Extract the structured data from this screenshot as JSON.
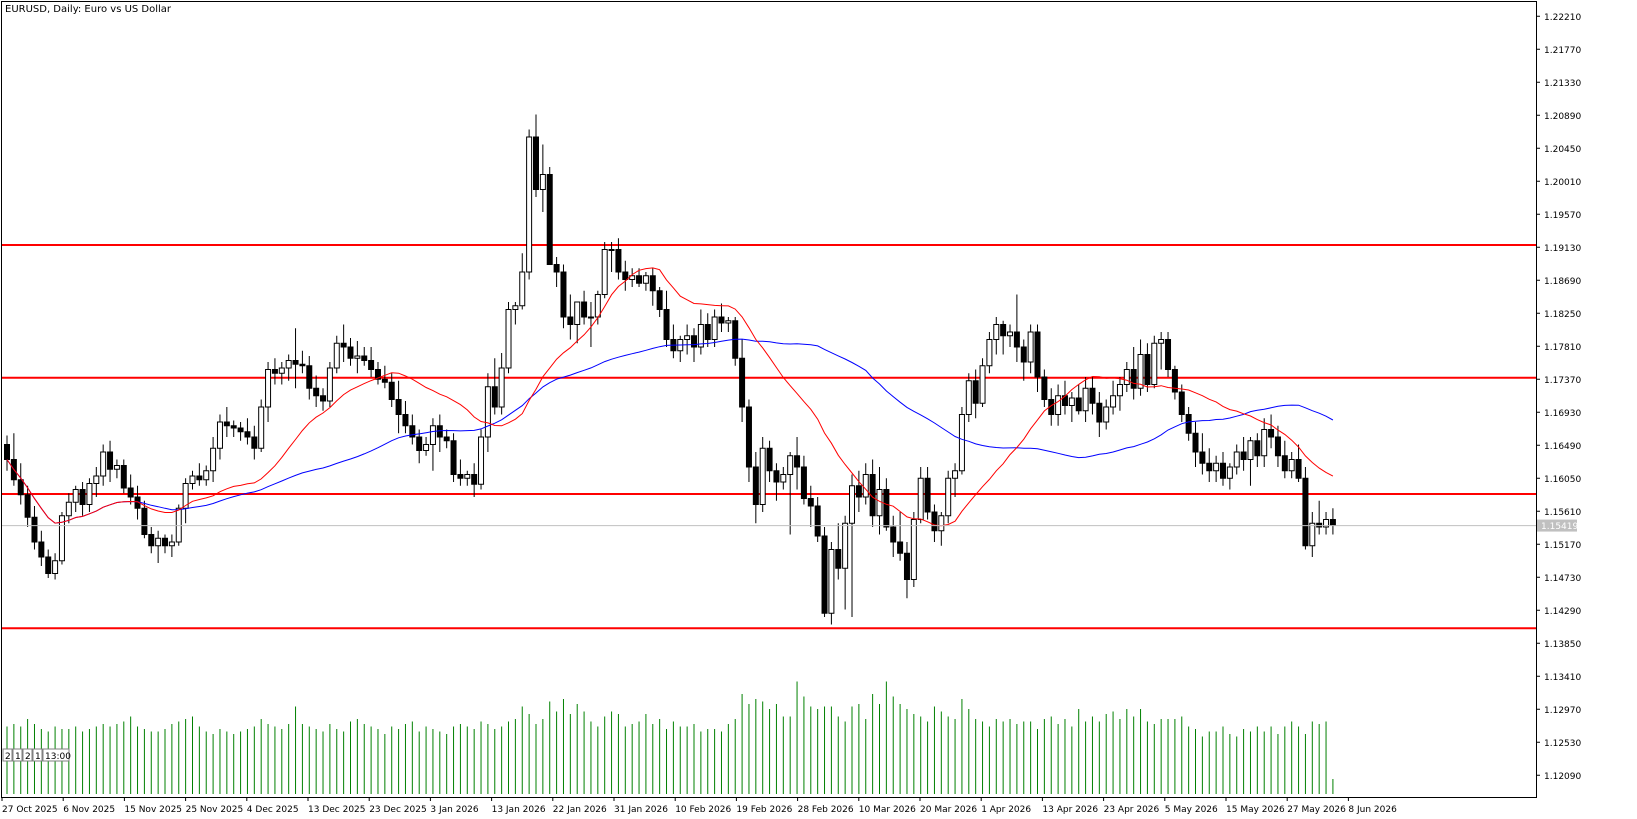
{
  "header": {
    "title": "EURUSD, Daily:  Euro vs US Dollar"
  },
  "timeframe_badge": [
    "2",
    "1",
    "2",
    "1",
    "13:00"
  ],
  "current_price_label": "1.15419",
  "colors": {
    "bull_candle": "#ffffff",
    "bear_candle": "#000000",
    "ma_fast": "#ff0000",
    "ma_slow": "#0000ff",
    "hline": "#ff0000",
    "volume": "#008000",
    "price_badge": "#c0c0c0"
  },
  "chart_data": {
    "type": "candlestick",
    "title": "EURUSD, Daily:  Euro vs US Dollar",
    "y_ticks": [
      "1.22210",
      "1.21770",
      "1.21330",
      "1.20890",
      "1.20450",
      "1.20010",
      "1.19570",
      "1.19130",
      "1.18690",
      "1.18250",
      "1.17810",
      "1.17370",
      "1.16930",
      "1.16490",
      "1.16050",
      "1.15610",
      "1.15170",
      "1.14730",
      "1.14290",
      "1.13850",
      "1.13410",
      "1.12970",
      "1.12530",
      "1.12090"
    ],
    "ylim": [
      1.118,
      1.224
    ],
    "x_labels": [
      "27 Oct 2025",
      "6 Nov 2025",
      "15 Nov 2025",
      "25 Nov 2025",
      "4 Dec 2025",
      "13 Dec 2025",
      "23 Dec 2025",
      "3 Jan 2026",
      "13 Jan 2026",
      "22 Jan 2026",
      "31 Jan 2026",
      "10 Feb 2026",
      "19 Feb 2026",
      "28 Feb 2026",
      "10 Mar 2026",
      "20 Mar 2026",
      "1 Apr 2026",
      "13 Apr 2026",
      "23 Apr 2026",
      "5 May 2026",
      "15 May 2026",
      "27 May 2026",
      "8 Jun 2026"
    ],
    "horizontal_lines": [
      1.1916,
      1.1739,
      1.1584,
      1.1405
    ],
    "current_price": 1.15419,
    "ohlc": [
      [
        1.165,
        1.1662,
        1.1615,
        1.163
      ],
      [
        1.163,
        1.1665,
        1.1595,
        1.1603
      ],
      [
        1.1603,
        1.1625,
        1.157,
        1.1583
      ],
      [
        1.1583,
        1.1595,
        1.154,
        1.1553
      ],
      [
        1.1553,
        1.1568,
        1.151,
        1.152
      ],
      [
        1.152,
        1.1535,
        1.1488,
        1.15
      ],
      [
        1.15,
        1.151,
        1.1472,
        1.1478
      ],
      [
        1.1478,
        1.1505,
        1.147,
        1.1495
      ],
      [
        1.1495,
        1.156,
        1.149,
        1.1555
      ],
      [
        1.1555,
        1.1585,
        1.1545,
        1.1573
      ],
      [
        1.1573,
        1.1595,
        1.156,
        1.159
      ],
      [
        1.159,
        1.16,
        1.1555,
        1.157
      ],
      [
        1.157,
        1.1605,
        1.156,
        1.1598
      ],
      [
        1.1598,
        1.162,
        1.158,
        1.1608
      ],
      [
        1.1608,
        1.165,
        1.1595,
        1.164
      ],
      [
        1.164,
        1.1655,
        1.16,
        1.1617
      ],
      [
        1.1617,
        1.163,
        1.1605,
        1.1622
      ],
      [
        1.1622,
        1.163,
        1.1585,
        1.1592
      ],
      [
        1.1592,
        1.161,
        1.157,
        1.158
      ],
      [
        1.158,
        1.1595,
        1.155,
        1.1565
      ],
      [
        1.1565,
        1.1575,
        1.1525,
        1.153
      ],
      [
        1.153,
        1.154,
        1.1505,
        1.1515
      ],
      [
        1.1515,
        1.1535,
        1.1492,
        1.1525
      ],
      [
        1.1525,
        1.153,
        1.1505,
        1.1515
      ],
      [
        1.1515,
        1.153,
        1.15,
        1.152
      ],
      [
        1.152,
        1.157,
        1.1515,
        1.1565
      ],
      [
        1.1565,
        1.1605,
        1.1545,
        1.1598
      ],
      [
        1.1598,
        1.1615,
        1.159,
        1.1608
      ],
      [
        1.1608,
        1.1625,
        1.1595,
        1.1603
      ],
      [
        1.1603,
        1.1622,
        1.1595,
        1.1615
      ],
      [
        1.1615,
        1.166,
        1.16,
        1.1645
      ],
      [
        1.1645,
        1.169,
        1.163,
        1.168
      ],
      [
        1.168,
        1.17,
        1.166,
        1.1675
      ],
      [
        1.1675,
        1.1682,
        1.166,
        1.1672
      ],
      [
        1.1672,
        1.168,
        1.1655,
        1.1667
      ],
      [
        1.1667,
        1.1685,
        1.165,
        1.166
      ],
      [
        1.166,
        1.1675,
        1.163,
        1.1645
      ],
      [
        1.1645,
        1.171,
        1.164,
        1.17
      ],
      [
        1.17,
        1.176,
        1.168,
        1.175
      ],
      [
        1.175,
        1.1765,
        1.173,
        1.1745
      ],
      [
        1.1745,
        1.176,
        1.173,
        1.1752
      ],
      [
        1.1752,
        1.177,
        1.1735,
        1.1762
      ],
      [
        1.1762,
        1.1805,
        1.1725,
        1.1757
      ],
      [
        1.1757,
        1.1775,
        1.1745,
        1.1755
      ],
      [
        1.1755,
        1.1768,
        1.171,
        1.1725
      ],
      [
        1.1725,
        1.1742,
        1.17,
        1.1715
      ],
      [
        1.1715,
        1.1725,
        1.1695,
        1.1708
      ],
      [
        1.1708,
        1.176,
        1.17,
        1.1752
      ],
      [
        1.1752,
        1.1795,
        1.1745,
        1.1785
      ],
      [
        1.1785,
        1.181,
        1.176,
        1.178
      ],
      [
        1.178,
        1.1792,
        1.1755,
        1.1765
      ],
      [
        1.1765,
        1.1788,
        1.1745,
        1.1768
      ],
      [
        1.1768,
        1.178,
        1.1755,
        1.1762
      ],
      [
        1.1762,
        1.178,
        1.174,
        1.175
      ],
      [
        1.175,
        1.176,
        1.173,
        1.1737
      ],
      [
        1.1737,
        1.1755,
        1.1725,
        1.1733
      ],
      [
        1.1733,
        1.1745,
        1.17,
        1.171
      ],
      [
        1.171,
        1.1735,
        1.1665,
        1.169
      ],
      [
        1.169,
        1.1708,
        1.1665,
        1.1675
      ],
      [
        1.1675,
        1.169,
        1.165,
        1.166
      ],
      [
        1.166,
        1.167,
        1.1625,
        1.1642
      ],
      [
        1.1642,
        1.166,
        1.1635,
        1.165
      ],
      [
        1.165,
        1.1685,
        1.1615,
        1.1675
      ],
      [
        1.1675,
        1.169,
        1.164,
        1.166
      ],
      [
        1.166,
        1.167,
        1.1645,
        1.1655
      ],
      [
        1.1655,
        1.1665,
        1.16,
        1.161
      ],
      [
        1.161,
        1.163,
        1.1595,
        1.1605
      ],
      [
        1.1605,
        1.1615,
        1.1595,
        1.161
      ],
      [
        1.161,
        1.1625,
        1.158,
        1.1597
      ],
      [
        1.1597,
        1.167,
        1.159,
        1.166
      ],
      [
        1.166,
        1.1745,
        1.164,
        1.1727
      ],
      [
        1.1727,
        1.1765,
        1.169,
        1.17
      ],
      [
        1.17,
        1.1772,
        1.169,
        1.1752
      ],
      [
        1.1752,
        1.184,
        1.1745,
        1.183
      ],
      [
        1.183,
        1.184,
        1.181,
        1.1835
      ],
      [
        1.1835,
        1.1905,
        1.183,
        1.188
      ],
      [
        1.188,
        1.207,
        1.187,
        1.206
      ],
      [
        1.206,
        1.209,
        1.198,
        1.199
      ],
      [
        1.199,
        1.205,
        1.196,
        1.201
      ],
      [
        1.201,
        1.202,
        1.189,
        1.189
      ],
      [
        1.189,
        1.19,
        1.186,
        1.188
      ],
      [
        1.188,
        1.189,
        1.1805,
        1.182
      ],
      [
        1.182,
        1.185,
        1.179,
        1.181
      ],
      [
        1.181,
        1.1835,
        1.1785,
        1.184
      ],
      [
        1.184,
        1.1855,
        1.181,
        1.182
      ],
      [
        1.182,
        1.184,
        1.178,
        1.182
      ],
      [
        1.182,
        1.1855,
        1.181,
        1.185
      ],
      [
        1.185,
        1.192,
        1.1845,
        1.191
      ],
      [
        1.191,
        1.192,
        1.188,
        1.191
      ],
      [
        1.191,
        1.1925,
        1.187,
        1.188
      ],
      [
        1.188,
        1.1895,
        1.1855,
        1.187
      ],
      [
        1.187,
        1.1885,
        1.186,
        1.1875
      ],
      [
        1.1875,
        1.1885,
        1.186,
        1.1865
      ],
      [
        1.1865,
        1.188,
        1.1855,
        1.1875
      ],
      [
        1.1875,
        1.1885,
        1.1835,
        1.1855
      ],
      [
        1.1855,
        1.186,
        1.182,
        1.183
      ],
      [
        1.183,
        1.1855,
        1.178,
        1.179
      ],
      [
        1.179,
        1.181,
        1.1765,
        1.1775
      ],
      [
        1.1775,
        1.1795,
        1.176,
        1.179
      ],
      [
        1.179,
        1.181,
        1.177,
        1.1795
      ],
      [
        1.1795,
        1.1805,
        1.176,
        1.178
      ],
      [
        1.178,
        1.183,
        1.177,
        1.181
      ],
      [
        1.181,
        1.1825,
        1.178,
        1.179
      ],
      [
        1.179,
        1.183,
        1.178,
        1.182
      ],
      [
        1.182,
        1.1838,
        1.18,
        1.1812
      ],
      [
        1.1812,
        1.182,
        1.18,
        1.1815
      ],
      [
        1.1815,
        1.182,
        1.1755,
        1.1765
      ],
      [
        1.1765,
        1.179,
        1.168,
        1.17
      ],
      [
        1.17,
        1.171,
        1.16,
        1.162
      ],
      [
        1.162,
        1.164,
        1.1545,
        1.157
      ],
      [
        1.157,
        1.166,
        1.156,
        1.1645
      ],
      [
        1.1645,
        1.1655,
        1.16,
        1.1615
      ],
      [
        1.1615,
        1.1625,
        1.1575,
        1.16
      ],
      [
        1.16,
        1.162,
        1.159,
        1.161
      ],
      [
        1.161,
        1.164,
        1.153,
        1.1635
      ],
      [
        1.1635,
        1.166,
        1.159,
        1.162
      ],
      [
        1.162,
        1.1635,
        1.157,
        1.1578
      ],
      [
        1.1578,
        1.1595,
        1.154,
        1.1568
      ],
      [
        1.1568,
        1.158,
        1.152,
        1.1528
      ],
      [
        1.1528,
        1.154,
        1.142,
        1.1425
      ],
      [
        1.1425,
        1.152,
        1.141,
        1.151
      ],
      [
        1.151,
        1.1545,
        1.147,
        1.1485
      ],
      [
        1.1485,
        1.1555,
        1.143,
        1.1545
      ],
      [
        1.1545,
        1.161,
        1.142,
        1.1595
      ],
      [
        1.1595,
        1.1615,
        1.156,
        1.158
      ],
      [
        1.158,
        1.1625,
        1.157,
        1.161
      ],
      [
        1.161,
        1.163,
        1.154,
        1.1555
      ],
      [
        1.1555,
        1.162,
        1.153,
        1.159
      ],
      [
        1.159,
        1.1605,
        1.1535,
        1.154
      ],
      [
        1.154,
        1.1555,
        1.15,
        1.152
      ],
      [
        1.152,
        1.156,
        1.1495,
        1.1505
      ],
      [
        1.1505,
        1.152,
        1.1445,
        1.147
      ],
      [
        1.147,
        1.156,
        1.146,
        1.155
      ],
      [
        1.155,
        1.162,
        1.1545,
        1.1605
      ],
      [
        1.1605,
        1.162,
        1.155,
        1.156
      ],
      [
        1.156,
        1.157,
        1.152,
        1.1535
      ],
      [
        1.1535,
        1.156,
        1.1515,
        1.1555
      ],
      [
        1.1555,
        1.1615,
        1.1545,
        1.1605
      ],
      [
        1.1605,
        1.1625,
        1.158,
        1.1615
      ],
      [
        1.1615,
        1.17,
        1.161,
        1.169
      ],
      [
        1.169,
        1.1745,
        1.168,
        1.1735
      ],
      [
        1.1735,
        1.175,
        1.1685,
        1.1705
      ],
      [
        1.1705,
        1.1765,
        1.17,
        1.1755
      ],
      [
        1.1755,
        1.18,
        1.1745,
        1.179
      ],
      [
        1.179,
        1.182,
        1.177,
        1.181
      ],
      [
        1.181,
        1.1815,
        1.177,
        1.1795
      ],
      [
        1.1795,
        1.181,
        1.178,
        1.18
      ],
      [
        1.18,
        1.185,
        1.176,
        1.178
      ],
      [
        1.178,
        1.179,
        1.1735,
        1.176
      ],
      [
        1.176,
        1.181,
        1.1745,
        1.18
      ],
      [
        1.18,
        1.181,
        1.172,
        1.174
      ],
      [
        1.174,
        1.175,
        1.17,
        1.171
      ],
      [
        1.171,
        1.1725,
        1.1675,
        1.169
      ],
      [
        1.169,
        1.173,
        1.1675,
        1.1715
      ],
      [
        1.1715,
        1.1735,
        1.169,
        1.1702
      ],
      [
        1.1702,
        1.172,
        1.168,
        1.1712
      ],
      [
        1.1712,
        1.173,
        1.169,
        1.1695
      ],
      [
        1.1695,
        1.174,
        1.168,
        1.1725
      ],
      [
        1.1725,
        1.174,
        1.169,
        1.1705
      ],
      [
        1.1705,
        1.172,
        1.166,
        1.168
      ],
      [
        1.168,
        1.171,
        1.167,
        1.17
      ],
      [
        1.17,
        1.1735,
        1.169,
        1.1715
      ],
      [
        1.1715,
        1.174,
        1.1695,
        1.173
      ],
      [
        1.173,
        1.176,
        1.172,
        1.175
      ],
      [
        1.175,
        1.178,
        1.171,
        1.1725
      ],
      [
        1.1725,
        1.179,
        1.1715,
        1.177
      ],
      [
        1.177,
        1.1785,
        1.172,
        1.173
      ],
      [
        1.173,
        1.1795,
        1.1725,
        1.1785
      ],
      [
        1.1785,
        1.18,
        1.175,
        1.179
      ],
      [
        1.179,
        1.18,
        1.174,
        1.175
      ],
      [
        1.175,
        1.1755,
        1.171,
        1.172
      ],
      [
        1.172,
        1.173,
        1.168,
        1.169
      ],
      [
        1.169,
        1.17,
        1.1655,
        1.1665
      ],
      [
        1.1665,
        1.168,
        1.162,
        1.164
      ],
      [
        1.164,
        1.1665,
        1.161,
        1.1625
      ],
      [
        1.1625,
        1.1645,
        1.16,
        1.1615
      ],
      [
        1.1615,
        1.1635,
        1.16,
        1.1625
      ],
      [
        1.1625,
        1.164,
        1.1595,
        1.1605
      ],
      [
        1.1605,
        1.1625,
        1.159,
        1.162
      ],
      [
        1.162,
        1.165,
        1.161,
        1.164
      ],
      [
        1.164,
        1.166,
        1.1615,
        1.163
      ],
      [
        1.163,
        1.166,
        1.1595,
        1.1655
      ],
      [
        1.1655,
        1.1665,
        1.162,
        1.1635
      ],
      [
        1.1635,
        1.1685,
        1.162,
        1.167
      ],
      [
        1.167,
        1.169,
        1.1645,
        1.166
      ],
      [
        1.166,
        1.1675,
        1.162,
        1.1635
      ],
      [
        1.1635,
        1.1655,
        1.1605,
        1.1615
      ],
      [
        1.1615,
        1.164,
        1.1605,
        1.163
      ],
      [
        1.163,
        1.165,
        1.16,
        1.1605
      ],
      [
        1.1605,
        1.162,
        1.151,
        1.1515
      ],
      [
        1.1515,
        1.156,
        1.15,
        1.1545
      ],
      [
        1.1545,
        1.1575,
        1.153,
        1.154
      ],
      [
        1.154,
        1.156,
        1.153,
        1.155
      ],
      [
        1.155,
        1.1565,
        1.153,
        1.1542
      ]
    ],
    "volume": [
      27,
      28,
      27,
      30,
      28,
      26,
      25,
      27,
      26,
      26,
      27,
      25,
      26,
      27,
      28,
      27,
      28,
      29,
      31,
      27,
      26,
      25,
      25,
      26,
      28,
      29,
      30,
      31,
      27,
      25,
      24,
      26,
      25,
      24,
      25,
      26,
      27,
      30,
      28,
      27,
      26,
      28,
      35,
      28,
      27,
      26,
      25,
      28,
      26,
      25,
      29,
      30,
      28,
      27,
      26,
      24,
      27,
      26,
      28,
      29,
      25,
      27,
      26,
      25,
      24,
      27,
      28,
      27,
      26,
      29,
      28,
      26,
      27,
      29,
      30,
      35,
      32,
      28,
      30,
      37,
      33,
      38,
      32,
      36,
      33,
      29,
      27,
      31,
      33,
      32,
      27,
      28,
      29,
      32,
      28,
      30,
      26,
      29,
      27,
      27,
      28,
      25,
      26,
      26,
      25,
      28,
      30,
      40,
      36,
      38,
      37,
      34,
      36,
      31,
      31,
      45,
      39,
      35,
      34,
      35,
      35,
      31,
      29,
      35,
      36,
      30,
      40,
      36,
      45,
      39,
      36,
      34,
      32,
      31,
      29,
      35,
      33,
      31,
      30,
      38,
      34,
      30,
      29,
      27,
      30,
      29,
      30,
      28,
      29,
      29,
      26,
      30,
      31,
      28,
      30,
      27,
      34,
      29,
      31,
      29,
      32,
      33,
      30,
      34,
      31,
      34,
      29,
      28,
      30,
      30,
      30,
      31,
      27,
      26,
      23,
      25,
      25,
      27,
      24,
      23,
      26,
      25,
      27,
      25,
      27,
      24,
      27,
      29,
      27,
      24,
      29,
      28,
      29,
      6
    ]
  },
  "indicators": {
    "ma_fast_period": 20,
    "ma_slow_period": 50
  }
}
